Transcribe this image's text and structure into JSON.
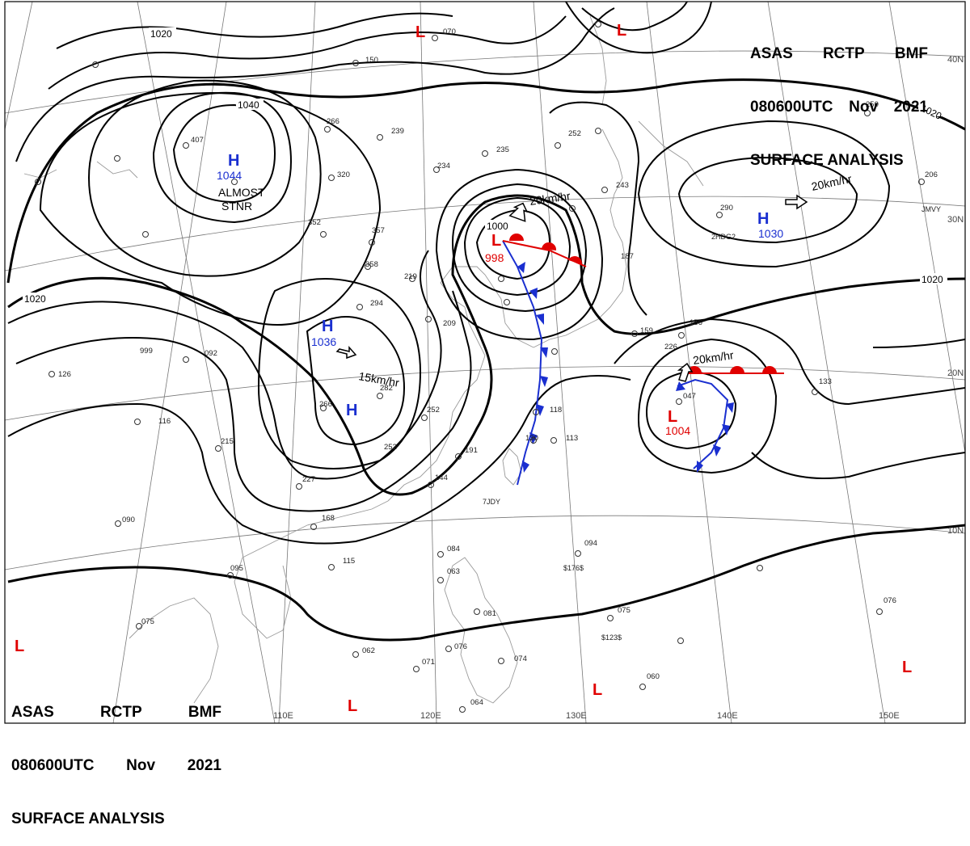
{
  "header": {
    "agency": [
      "ASAS",
      "RCTP",
      "BMF"
    ],
    "datetime": [
      "080600UTC",
      "Nov",
      "2021"
    ],
    "product": "SURFACE ANALYSIS"
  },
  "colors": {
    "high": "#1a2fd0",
    "low": "#e00000",
    "isobar": "#000000",
    "grid": "#777777",
    "coast": "#9a9a9a"
  },
  "lat_labels": [
    "40N",
    "30N",
    "20N",
    "10N"
  ],
  "lon_labels": [
    "110E",
    "120E",
    "130E",
    "140E",
    "150E"
  ],
  "isobar_labels": [
    "1020",
    "1040",
    "1020",
    "1000",
    "1020",
    "1020"
  ],
  "pressure_centers": [
    {
      "type": "H",
      "value": "1044"
    },
    {
      "type": "H",
      "value": "1036"
    },
    {
      "type": "H",
      "value": ""
    },
    {
      "type": "H",
      "value": "1030"
    },
    {
      "type": "L",
      "value": "998"
    },
    {
      "type": "L",
      "value": "1004"
    },
    {
      "type": "L",
      "value": ""
    },
    {
      "type": "L",
      "value": ""
    },
    {
      "type": "L",
      "value": ""
    },
    {
      "type": "L",
      "value": ""
    },
    {
      "type": "L",
      "value": ""
    },
    {
      "type": "L",
      "value": ""
    }
  ],
  "motion_labels": [
    "20km/hr",
    "20km/hr",
    "15km/hr",
    "20km/hr"
  ],
  "annotations": [
    "ALMOST",
    "STNR"
  ],
  "station_values": [
    "407",
    "320",
    "352",
    "357",
    "358",
    "294",
    "282",
    "266",
    "252",
    "234",
    "235",
    "239",
    "266",
    "219",
    "209",
    "252",
    "191",
    "144",
    "130",
    "118",
    "113",
    "092",
    "999",
    "126",
    "116",
    "215",
    "227",
    "168",
    "115",
    "095",
    "090",
    "075",
    "084",
    "063",
    "081",
    "076",
    "071",
    "074",
    "062",
    "064",
    "060",
    "076",
    "075",
    "094",
    "133",
    "156",
    "159",
    "243",
    "252",
    "290",
    "206",
    "250",
    "150",
    "070",
    "047",
    "226",
    "187"
  ],
  "ship_labels": [
    "2HDG2",
    "JMVY",
    "7JDY",
    "$176$",
    "$123$"
  ]
}
